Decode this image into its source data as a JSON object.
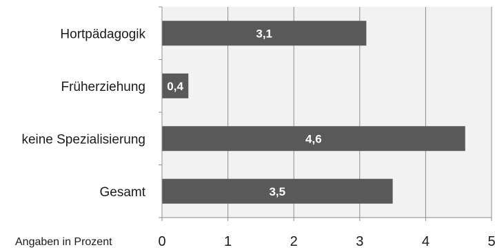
{
  "chart_data": {
    "type": "bar",
    "orientation": "horizontal",
    "categories": [
      "Hortpädagogik",
      "Früherziehung",
      "keine Spezialisierung",
      "Gesamt"
    ],
    "values": [
      3.1,
      0.4,
      4.6,
      3.5
    ],
    "data_labels": [
      "3,1",
      "0,4",
      "4,6",
      "3,5"
    ],
    "x_ticks": [
      "0",
      "1",
      "2",
      "3",
      "4",
      "5"
    ],
    "xlim": [
      0,
      5
    ],
    "x_unit_label": "Angaben in Prozent",
    "grid": true,
    "colors": {
      "bar": "#595959",
      "plot_background": "#f2f2f2",
      "grid": "#8c8c8c",
      "axis": "#8c8c8c"
    }
  }
}
